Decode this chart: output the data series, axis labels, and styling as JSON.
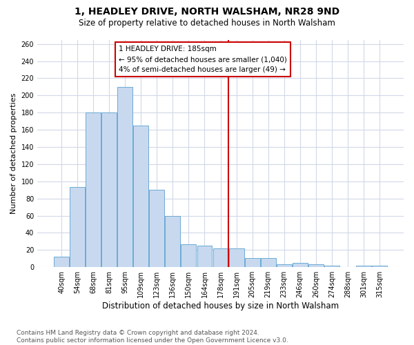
{
  "title": "1, HEADLEY DRIVE, NORTH WALSHAM, NR28 9ND",
  "subtitle": "Size of property relative to detached houses in North Walsham",
  "xlabel": "Distribution of detached houses by size in North Walsham",
  "ylabel": "Number of detached properties",
  "categories": [
    "40sqm",
    "54sqm",
    "68sqm",
    "81sqm",
    "95sqm",
    "109sqm",
    "123sqm",
    "136sqm",
    "150sqm",
    "164sqm",
    "178sqm",
    "191sqm",
    "205sqm",
    "219sqm",
    "233sqm",
    "246sqm",
    "260sqm",
    "274sqm",
    "288sqm",
    "301sqm",
    "315sqm"
  ],
  "values": [
    12,
    93,
    180,
    180,
    210,
    165,
    90,
    60,
    27,
    25,
    22,
    22,
    11,
    11,
    3,
    5,
    3,
    2,
    0,
    2,
    2
  ],
  "bar_color": "#c8d9ef",
  "bar_edge_color": "#6aaad4",
  "bar_edge_width": 0.7,
  "vline_x": 10.5,
  "vline_color": "#cc0000",
  "ann_text": "1 HEADLEY DRIVE: 185sqm\n← 95% of detached houses are smaller (1,040)\n4% of semi-detached houses are larger (49) →",
  "ann_box_color": "#cc0000",
  "ylim_max": 265,
  "yticks": [
    0,
    20,
    40,
    60,
    80,
    100,
    120,
    140,
    160,
    180,
    200,
    220,
    240,
    260
  ],
  "bg_color": "#ffffff",
  "grid_color": "#d0d8e8",
  "title_fontsize": 10,
  "subtitle_fontsize": 8.5,
  "tick_fontsize": 7,
  "ylabel_fontsize": 8,
  "xlabel_fontsize": 8.5,
  "footnote_fontsize": 6.5,
  "footnote": "Contains HM Land Registry data © Crown copyright and database right 2024.\nContains public sector information licensed under the Open Government Licence v3.0."
}
